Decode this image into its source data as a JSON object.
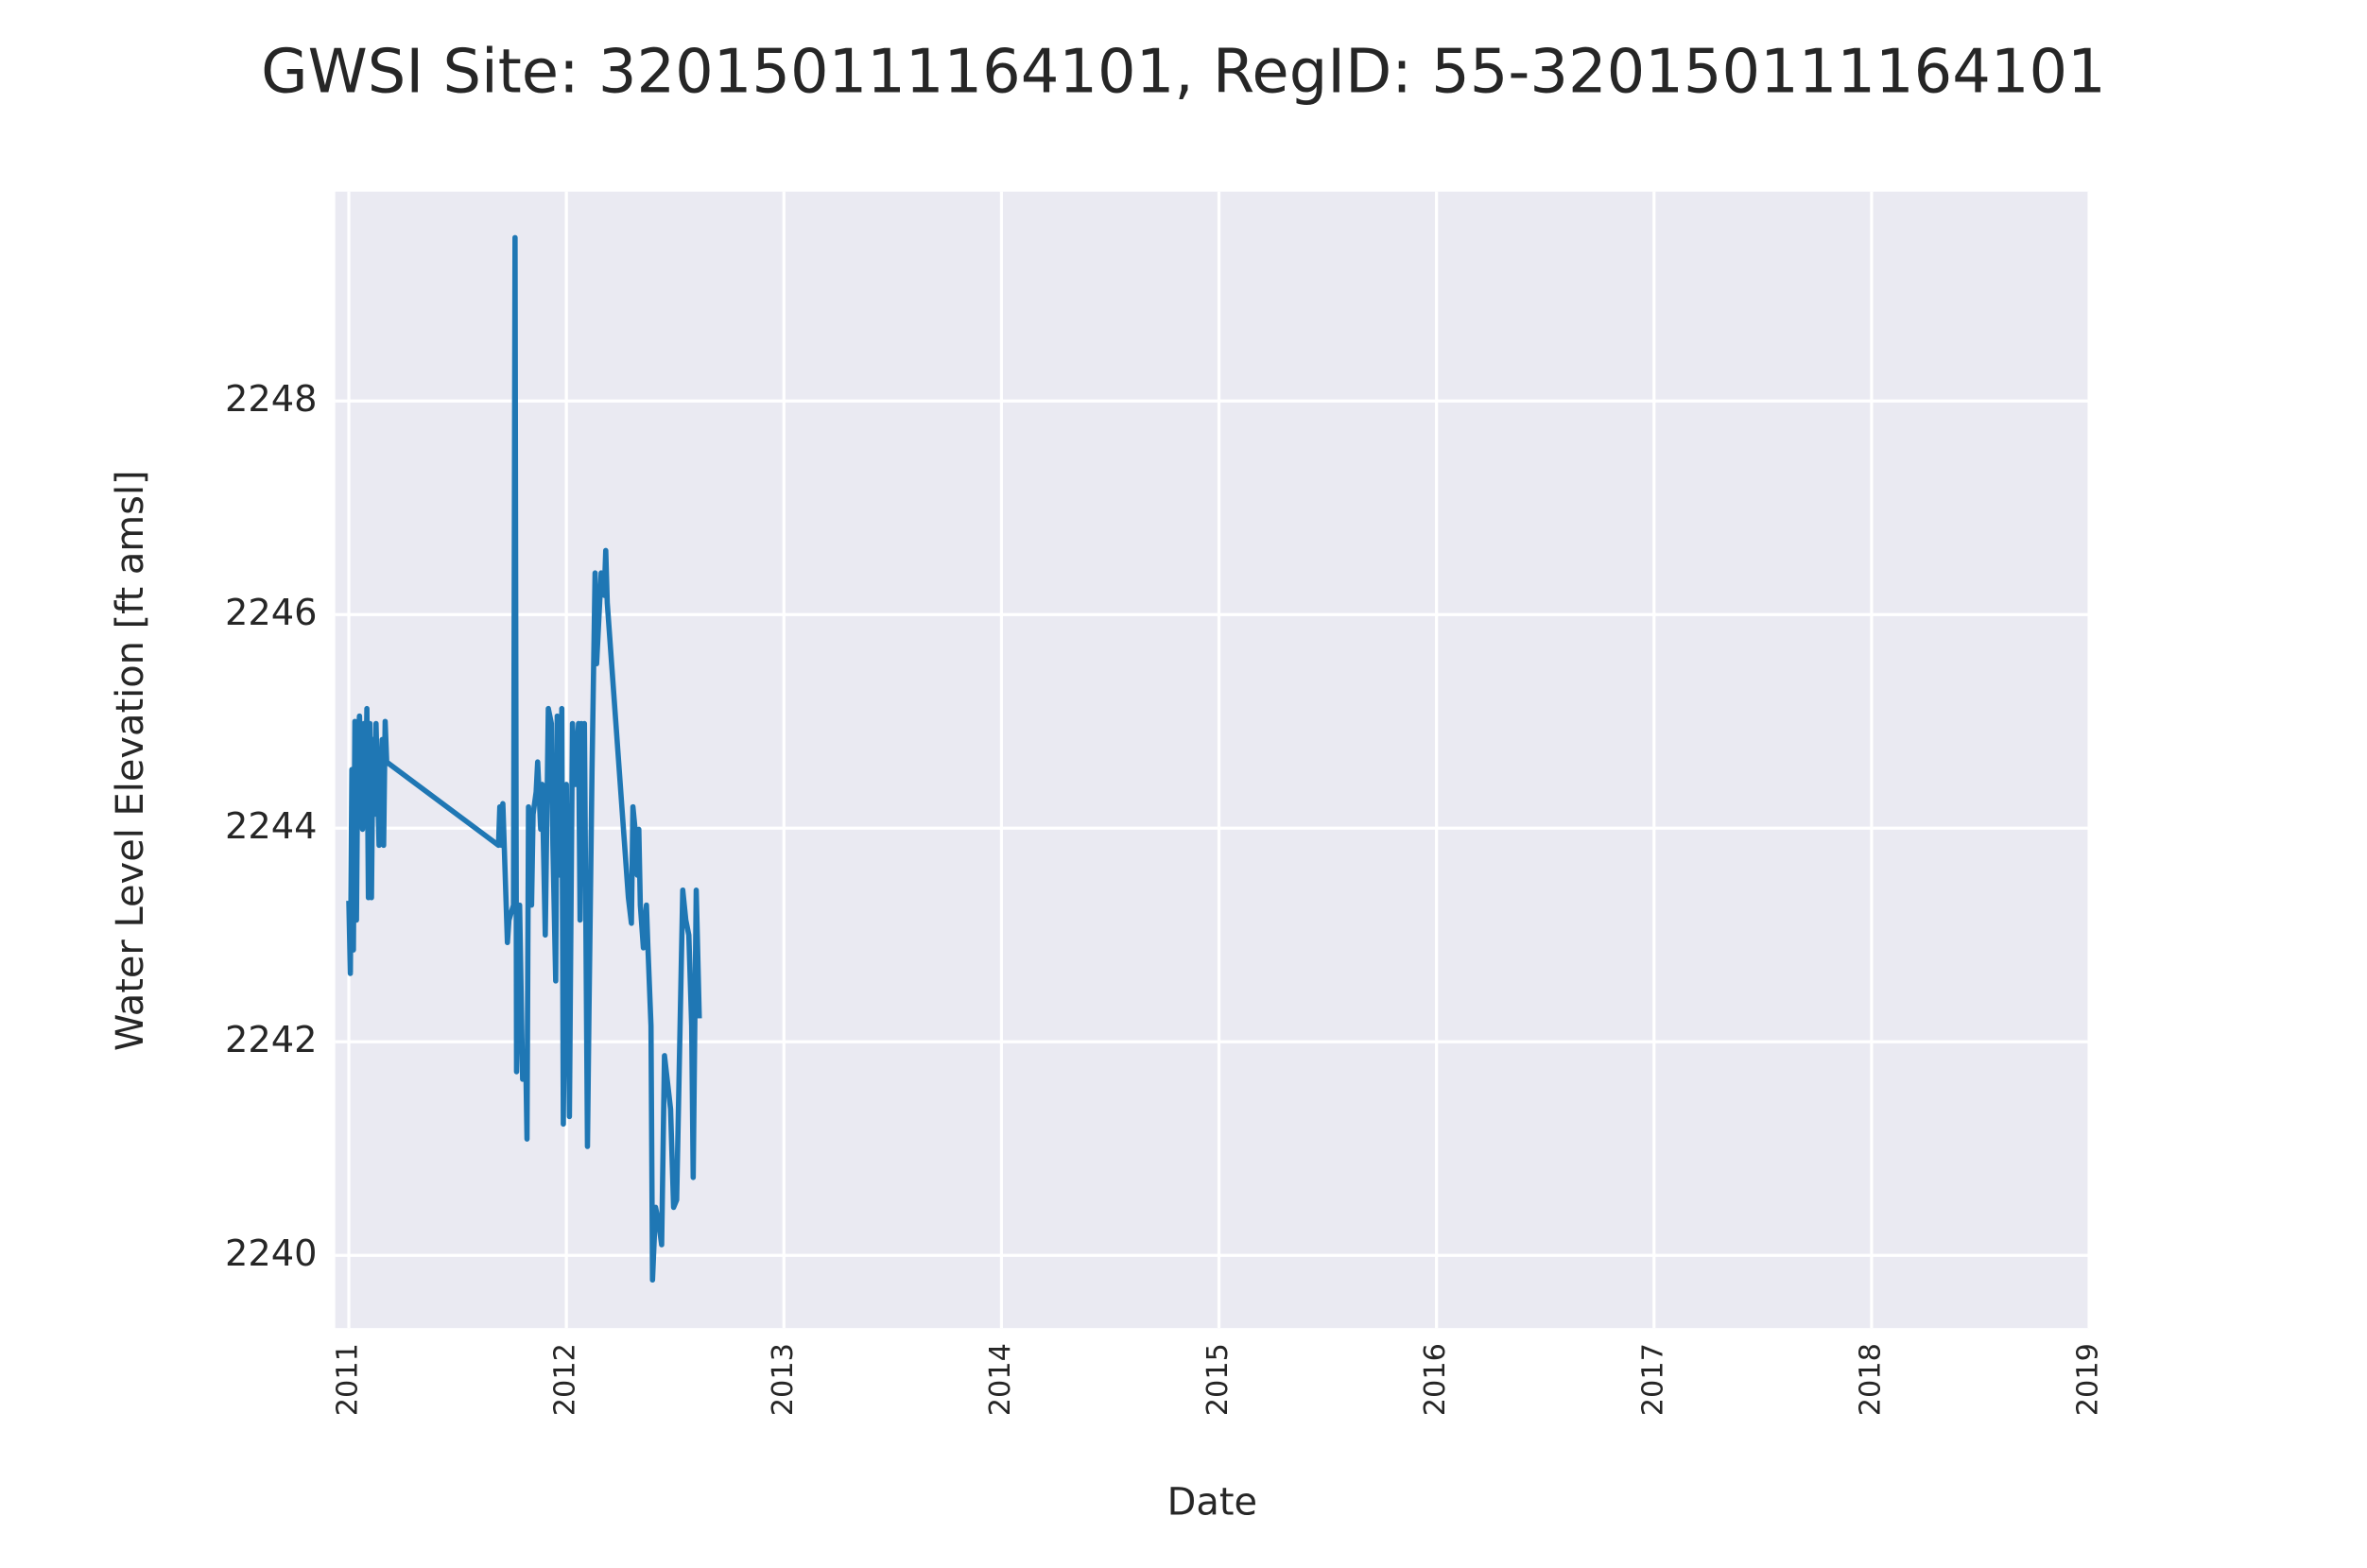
{
  "chart_data": {
    "type": "line",
    "title": "GWSI Site: 320150111164101, RegID: 55-320150111164101",
    "x_label": "Date",
    "y_label": "Water Level Elevation [ft amsl]",
    "color": "#1f77b4",
    "grid": true,
    "xlim": [
      2010.9375,
      2019
    ],
    "xticks": [
      2011,
      2012,
      2013,
      2014,
      2015,
      2016,
      2017,
      2018,
      2019
    ],
    "ylim": [
      2239.32,
      2249.96
    ],
    "yticks": [
      2240,
      2242,
      2244,
      2246,
      2248
    ],
    "x": [
      2011.0,
      2011.007,
      2011.014,
      2011.021,
      2011.028,
      2011.035,
      2011.042,
      2011.049,
      2011.063,
      2011.069,
      2011.076,
      2011.083,
      2011.09,
      2011.097,
      2011.104,
      2011.111,
      2011.118,
      2011.125,
      2011.139,
      2011.153,
      2011.16,
      2011.167,
      2011.174,
      2011.688,
      2011.694,
      2011.701,
      2011.708,
      2011.729,
      2011.736,
      2011.757,
      2011.764,
      2011.771,
      2011.785,
      2011.799,
      2011.813,
      2011.819,
      2011.826,
      2011.84,
      2011.847,
      2011.861,
      2011.868,
      2011.882,
      2011.889,
      2011.903,
      2011.917,
      2011.931,
      2011.938,
      2011.951,
      2011.958,
      2011.972,
      2011.979,
      2011.986,
      2012.0,
      2012.014,
      2012.028,
      2012.042,
      2012.056,
      2012.063,
      2012.069,
      2012.076,
      2012.083,
      2012.097,
      2012.104,
      2012.118,
      2012.125,
      2012.132,
      2012.139,
      2012.153,
      2012.16,
      2012.174,
      2012.181,
      2012.188,
      2012.285,
      2012.299,
      2012.306,
      2012.319,
      2012.326,
      2012.333,
      2012.34,
      2012.354,
      2012.368,
      2012.375,
      2012.389,
      2012.396,
      2012.41,
      2012.424,
      2012.438,
      2012.451,
      2012.479,
      2012.493,
      2012.507,
      2012.535,
      2012.549,
      2012.563,
      2012.576,
      2012.583,
      2012.597,
      2012.611
    ],
    "values": [
      2243.32,
      2242.64,
      2244.55,
      2242.86,
      2245.0,
      2243.14,
      2244.83,
      2245.05,
      2243.99,
      2244.98,
      2244.13,
      2245.12,
      2243.35,
      2244.98,
      2243.35,
      2244.83,
      2244.13,
      2244.98,
      2243.84,
      2244.83,
      2243.84,
      2245.0,
      2244.62,
      2243.84,
      2244.2,
      2243.84,
      2244.23,
      2242.93,
      2243.14,
      2243.28,
      2249.53,
      2241.72,
      2243.28,
      2241.65,
      2241.87,
      2241.09,
      2244.2,
      2243.28,
      2244.13,
      2244.34,
      2244.62,
      2243.99,
      2244.41,
      2243.0,
      2245.12,
      2244.98,
      2243.84,
      2242.57,
      2245.05,
      2243.56,
      2245.12,
      2241.23,
      2244.41,
      2241.3,
      2244.98,
      2244.41,
      2244.98,
      2243.14,
      2244.98,
      2244.13,
      2244.98,
      2241.02,
      2242.29,
      2244.55,
      2245.47,
      2246.39,
      2245.54,
      2246.11,
      2246.39,
      2246.18,
      2246.6,
      2246.11,
      2243.35,
      2243.11,
      2244.2,
      2243.92,
      2243.56,
      2243.99,
      2243.28,
      2242.88,
      2243.28,
      2242.88,
      2242.15,
      2239.77,
      2240.45,
      2240.31,
      2240.1,
      2241.87,
      2241.37,
      2240.45,
      2240.52,
      2243.42,
      2243.14,
      2243.0,
      2242.15,
      2240.73,
      2243.42,
      2242.22
    ]
  }
}
